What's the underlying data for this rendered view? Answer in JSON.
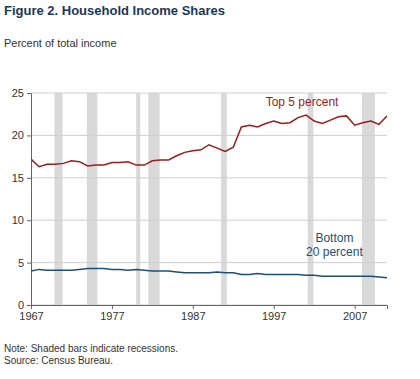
{
  "chart_data": {
    "type": "line",
    "title": "Figure 2. Household Income Shares",
    "y_label": "Percent of total income",
    "notes": [
      "Note: Shaded bars indicate recessions.",
      "Source: Census Bureau."
    ],
    "x": [
      1967,
      1968,
      1969,
      1970,
      1971,
      1972,
      1973,
      1974,
      1975,
      1976,
      1977,
      1978,
      1979,
      1980,
      1981,
      1982,
      1983,
      1984,
      1985,
      1986,
      1987,
      1988,
      1989,
      1990,
      1991,
      1992,
      1993,
      1994,
      1995,
      1996,
      1997,
      1998,
      1999,
      2000,
      2001,
      2002,
      2003,
      2004,
      2005,
      2006,
      2007,
      2008,
      2009,
      2010,
      2011
    ],
    "series": [
      {
        "name": "Top 5 percent",
        "color": "#9b1c1f",
        "values": [
          17.2,
          16.3,
          16.6,
          16.6,
          16.7,
          17.0,
          16.9,
          16.4,
          16.5,
          16.5,
          16.8,
          16.8,
          16.9,
          16.5,
          16.5,
          17.0,
          17.1,
          17.1,
          17.6,
          18.0,
          18.2,
          18.3,
          18.9,
          18.5,
          18.1,
          18.6,
          21.0,
          21.2,
          21.0,
          21.4,
          21.7,
          21.4,
          21.5,
          22.1,
          22.4,
          21.7,
          21.4,
          21.8,
          22.2,
          22.3,
          21.2,
          21.5,
          21.7,
          21.3,
          22.3
        ]
      },
      {
        "name": "Bottom 20 percent",
        "color": "#1f4e79",
        "values": [
          4.0,
          4.2,
          4.1,
          4.1,
          4.1,
          4.1,
          4.2,
          4.3,
          4.3,
          4.3,
          4.2,
          4.2,
          4.1,
          4.2,
          4.1,
          4.0,
          4.0,
          4.0,
          3.9,
          3.8,
          3.8,
          3.8,
          3.8,
          3.9,
          3.8,
          3.8,
          3.6,
          3.6,
          3.7,
          3.6,
          3.6,
          3.6,
          3.6,
          3.6,
          3.5,
          3.5,
          3.4,
          3.4,
          3.4,
          3.4,
          3.4,
          3.4,
          3.4,
          3.3,
          3.2
        ]
      }
    ],
    "recessions": [
      [
        1969.9,
        1970.9
      ],
      [
        1973.9,
        1975.2
      ],
      [
        1980.0,
        1980.5
      ],
      [
        1981.5,
        1982.9
      ],
      [
        1990.5,
        1991.2
      ],
      [
        2001.2,
        2001.9
      ],
      [
        2007.9,
        2009.5
      ]
    ],
    "xlim": [
      1967,
      2011
    ],
    "xticks": [
      1967,
      1977,
      1987,
      1997,
      2007
    ],
    "ylim": [
      0,
      25
    ],
    "yticks": [
      0,
      5,
      10,
      15,
      20,
      25
    ],
    "grid": true
  }
}
